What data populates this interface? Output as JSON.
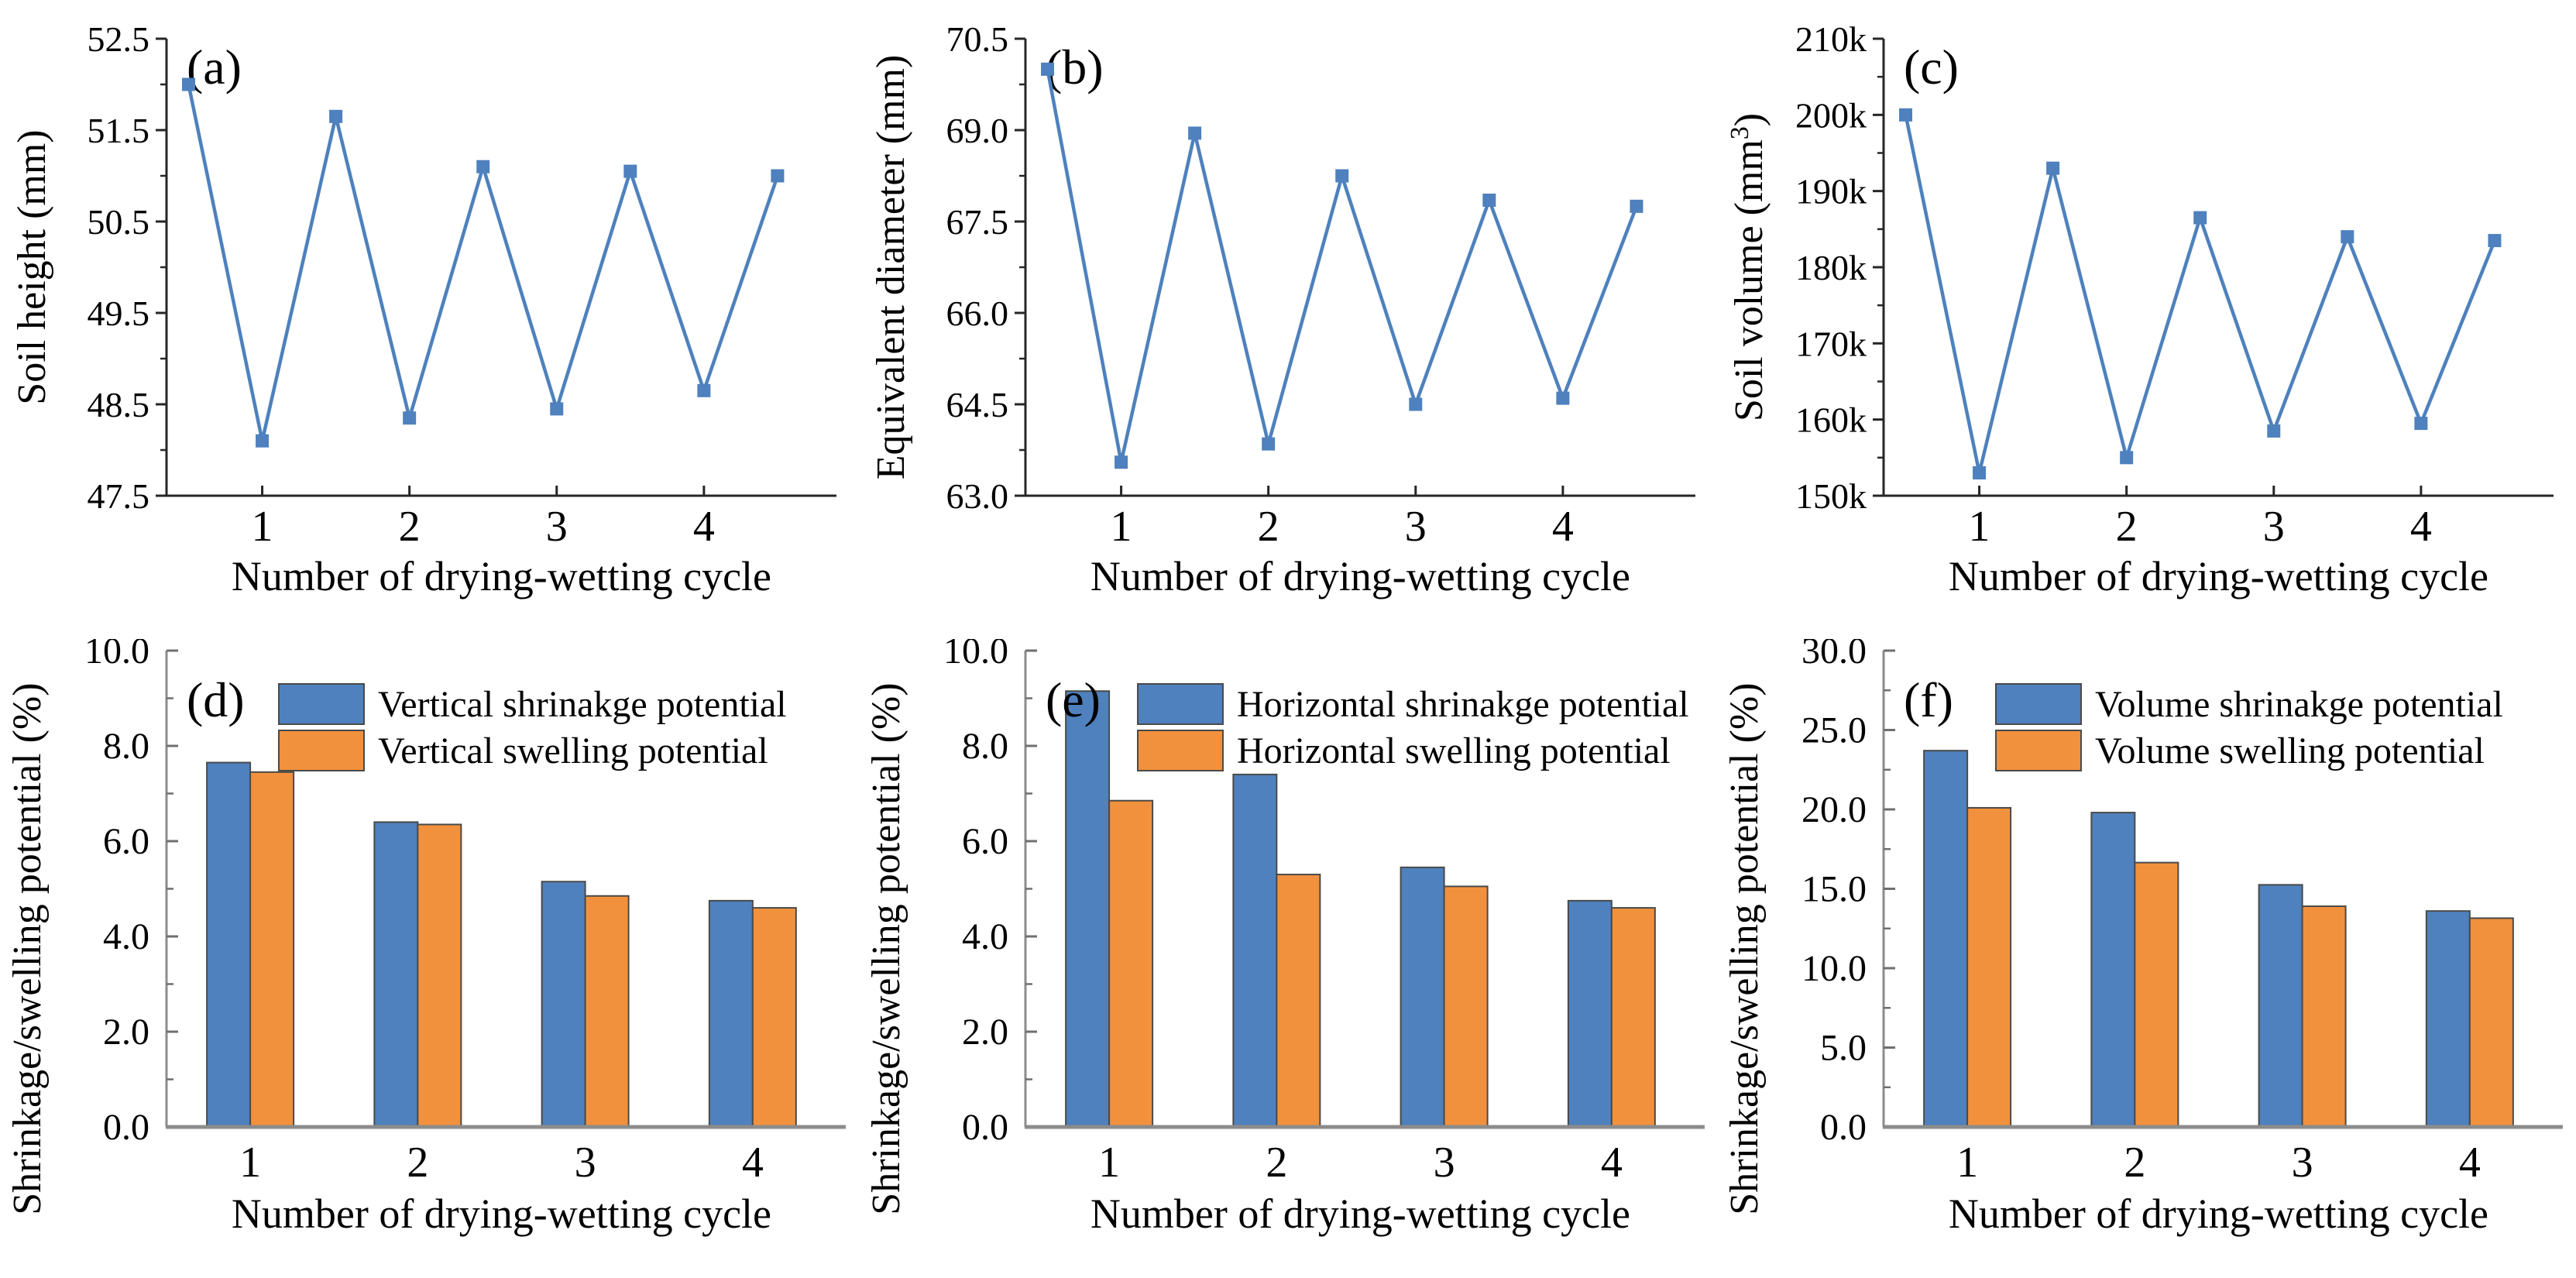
{
  "figure": {
    "background": "#ffffff"
  },
  "colors": {
    "series_blue": "#4e81bd",
    "series_orange": "#f2913d",
    "bar_outline": "#4a4a4a",
    "line_axis": "#262626",
    "bar_axis": "#8c8c8c",
    "bar_tick": "#6f6f6f",
    "text": "#000000"
  },
  "chart_data": [
    {
      "id": "a",
      "type": "line",
      "panel_label": "(a)",
      "xlabel": "Number of drying-wetting cycle",
      "ylabel": "Soil height (mm)",
      "x": [
        0.5,
        1,
        1.5,
        2,
        2.5,
        3,
        3.5,
        4,
        4.5
      ],
      "y": [
        52.0,
        48.1,
        51.65,
        48.35,
        51.1,
        48.45,
        51.05,
        48.65,
        51.0
      ],
      "xlim": [
        0.35,
        4.9
      ],
      "ylim": [
        47.5,
        52.5
      ],
      "xticks": [
        1,
        2,
        3,
        4
      ],
      "xtick_labels": [
        "1",
        "2",
        "3",
        "4"
      ],
      "yticks": [
        47.5,
        48.5,
        49.5,
        50.5,
        51.5,
        52.5
      ],
      "ytick_labels": [
        "47.5",
        "48.5",
        "49.5",
        "50.5",
        "51.5",
        "52.5"
      ],
      "yminor": [
        48.0,
        49.0,
        50.0,
        51.0,
        52.0
      ]
    },
    {
      "id": "b",
      "type": "line",
      "panel_label": "(b)",
      "xlabel": "Number of drying-wetting cycle",
      "ylabel": "Equivalent diameter (mm)",
      "x": [
        0.5,
        1,
        1.5,
        2,
        2.5,
        3,
        3.5,
        4,
        4.5
      ],
      "y": [
        70.0,
        63.55,
        68.95,
        63.85,
        68.25,
        64.5,
        67.85,
        64.6,
        67.75
      ],
      "xlim": [
        0.35,
        4.9
      ],
      "ylim": [
        63.0,
        70.5
      ],
      "xticks": [
        1,
        2,
        3,
        4
      ],
      "xtick_labels": [
        "1",
        "2",
        "3",
        "4"
      ],
      "yticks": [
        63.0,
        64.5,
        66.0,
        67.5,
        69.0,
        70.5
      ],
      "ytick_labels": [
        "63.0",
        "64.5",
        "66.0",
        "67.5",
        "69.0",
        "70.5"
      ],
      "yminor": [
        63.75,
        65.25,
        66.75,
        68.25,
        69.75
      ]
    },
    {
      "id": "c",
      "type": "line",
      "panel_label": "(c)",
      "xlabel": "Number of drying-wetting cycle",
      "ylabel_parts": [
        [
          "Soil volume (mm",
          false
        ],
        [
          "3",
          true
        ],
        [
          ")",
          false
        ]
      ],
      "x": [
        0.5,
        1,
        1.5,
        2,
        2.5,
        3,
        3.5,
        4,
        4.5
      ],
      "y": [
        200000,
        153000,
        193000,
        155000,
        186500,
        158500,
        184000,
        159500,
        183500
      ],
      "xlim": [
        0.35,
        4.9
      ],
      "ylim": [
        150000,
        210000
      ],
      "xticks": [
        1,
        2,
        3,
        4
      ],
      "xtick_labels": [
        "1",
        "2",
        "3",
        "4"
      ],
      "yticks": [
        150000,
        160000,
        170000,
        180000,
        190000,
        200000,
        210000
      ],
      "ytick_labels": [
        "150k",
        "160k",
        "170k",
        "180k",
        "190k",
        "200k",
        "210k"
      ],
      "yminor": [
        155000,
        165000,
        175000,
        185000,
        195000,
        205000
      ]
    },
    {
      "id": "d",
      "type": "bar",
      "panel_label": "(d)",
      "xlabel": "Number of drying-wetting cycle",
      "ylabel": "Shrinkage/swelling potential (%)",
      "categories": [
        "1",
        "2",
        "3",
        "4"
      ],
      "series": [
        {
          "name": "Vertical shrinakge potential",
          "color": "series_blue",
          "values": [
            7.65,
            6.4,
            5.15,
            4.75
          ]
        },
        {
          "name": "Vertical swelling potential",
          "color": "series_orange",
          "values": [
            7.45,
            6.35,
            4.85,
            4.6
          ]
        }
      ],
      "ylim": [
        0,
        10
      ],
      "yticks": [
        0,
        2,
        4,
        6,
        8,
        10
      ],
      "ytick_labels": [
        "0.0",
        "2.0",
        "4.0",
        "6.0",
        "8.0",
        "10.0"
      ],
      "yminor": [
        1,
        3,
        5,
        7,
        9
      ],
      "legend_position": "top"
    },
    {
      "id": "e",
      "type": "bar",
      "panel_label": "(e)",
      "xlabel": "Number of drying-wetting cycle",
      "ylabel": "Shrinkage/swelling potential (%)",
      "categories": [
        "1",
        "2",
        "3",
        "4"
      ],
      "series": [
        {
          "name": "Horizontal shrinakge potential",
          "color": "series_blue",
          "values": [
            9.15,
            7.4,
            5.45,
            4.75
          ]
        },
        {
          "name": "Horizontal swelling potential",
          "color": "series_orange",
          "values": [
            6.85,
            5.3,
            5.05,
            4.6
          ]
        }
      ],
      "ylim": [
        0,
        10
      ],
      "yticks": [
        0,
        2,
        4,
        6,
        8,
        10
      ],
      "ytick_labels": [
        "0.0",
        "2.0",
        "4.0",
        "6.0",
        "8.0",
        "10.0"
      ],
      "yminor": [
        1,
        3,
        5,
        7,
        9
      ],
      "legend_position": "top"
    },
    {
      "id": "f",
      "type": "bar",
      "panel_label": "(f)",
      "xlabel": "Number of drying-wetting cycle",
      "ylabel": "Shrinkage/swelling potential (%)",
      "categories": [
        "1",
        "2",
        "3",
        "4"
      ],
      "series": [
        {
          "name": "Volume shrinakge potential",
          "color": "series_blue",
          "values": [
            23.7,
            19.8,
            15.25,
            13.6
          ]
        },
        {
          "name": "Volume swelling potential",
          "color": "series_orange",
          "values": [
            20.1,
            16.65,
            13.9,
            13.15
          ]
        }
      ],
      "ylim": [
        0,
        30
      ],
      "yticks": [
        0,
        5,
        10,
        15,
        20,
        25,
        30
      ],
      "ytick_labels": [
        "0.0",
        "5.0",
        "10.0",
        "15.0",
        "20.0",
        "25.0",
        "30.0"
      ],
      "yminor": [
        2.5,
        7.5,
        12.5,
        17.5,
        22.5,
        27.5
      ],
      "legend_position": "top"
    }
  ]
}
